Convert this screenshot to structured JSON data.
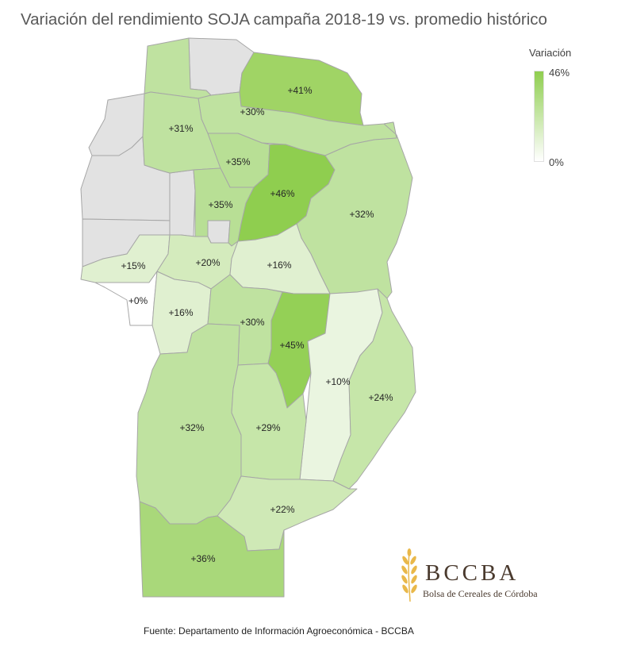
{
  "title": "Variación del rendimiento SOJA campaña 2018-19 vs. promedio histórico",
  "legend": {
    "title": "Variación",
    "max_label": "46%",
    "min_label": "0%",
    "max_color": "#8fce4f",
    "min_color": "#ffffff",
    "no_data_color": "#e2e2e2"
  },
  "regions": [
    {
      "id": "north-east-top",
      "label": "+41%",
      "value": 41
    },
    {
      "id": "north-center",
      "label": "+30%",
      "value": 30
    },
    {
      "id": "north-west",
      "label": "+31%",
      "value": 31
    },
    {
      "id": "north-mid-a",
      "label": "+35%",
      "value": 35
    },
    {
      "id": "north-mid-b",
      "label": "+35%",
      "value": 35
    },
    {
      "id": "center-north",
      "label": "+46%",
      "value": 46
    },
    {
      "id": "east-north",
      "label": "+32%",
      "value": 32
    },
    {
      "id": "west-a",
      "label": "+15%",
      "value": 15
    },
    {
      "id": "west-b",
      "label": "+20%",
      "value": 20
    },
    {
      "id": "center",
      "label": "+16%",
      "value": 16
    },
    {
      "id": "west-c",
      "label": "+0%",
      "value": 0
    },
    {
      "id": "west-d",
      "label": "+16%",
      "value": 16
    },
    {
      "id": "center-b",
      "label": "+30%",
      "value": 30
    },
    {
      "id": "center-c",
      "label": "+45%",
      "value": 45
    },
    {
      "id": "east-center",
      "label": "+10%",
      "value": 10
    },
    {
      "id": "east-south",
      "label": "+24%",
      "value": 24
    },
    {
      "id": "south-west",
      "label": "+32%",
      "value": 32
    },
    {
      "id": "south-center",
      "label": "+29%",
      "value": 29
    },
    {
      "id": "south-east",
      "label": "+22%",
      "value": 22
    },
    {
      "id": "far-south",
      "label": "+36%",
      "value": 36
    }
  ],
  "logo": {
    "name": "BCCBA",
    "subtitle": "Bolsa de Cereales de Córdoba"
  },
  "source": "Fuente: Departamento de Información Agroeconómica - BCCBA"
}
